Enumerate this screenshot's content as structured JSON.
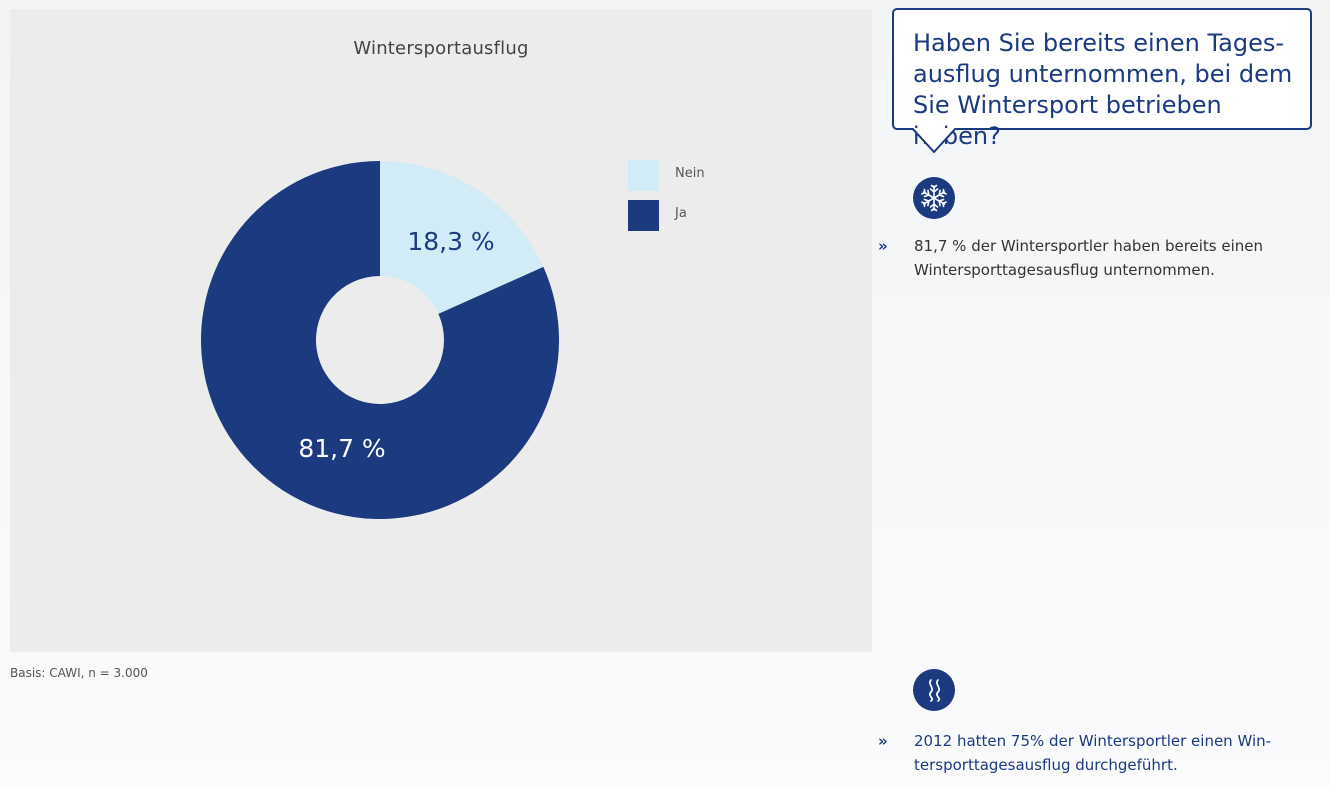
{
  "chart_data": {
    "type": "donut",
    "title": "Wintersportausflug",
    "slices": [
      {
        "label": "Nein",
        "value": 18.3,
        "display": "18,3 %",
        "color": "#d2ecf7",
        "text_color": "#1b3a80"
      },
      {
        "label": "Ja",
        "value": 81.7,
        "display": "81,7 %",
        "color": "#1b3a80",
        "text_color": "#ffffff"
      }
    ],
    "legend": {
      "position": "right",
      "entries": [
        {
          "label": "Nein",
          "color": "#d2ecf7"
        },
        {
          "label": "Ja",
          "color": "#1b3a80"
        }
      ]
    }
  },
  "basis": "Basis: CAWI, n = 3.000",
  "question": {
    "lines": [
      "Haben Sie bereits einen Tages-",
      "ausflug unternommen, bei dem",
      "Sie Wintersport betrieben haben?"
    ]
  },
  "facts": [
    {
      "icon": "snowflake-icon",
      "arrow": "»",
      "lines": [
        "81,7 % der Wintersportler haben bereits einen",
        "Wintersporttagesausflug unternommen."
      ]
    },
    {
      "icon": "waves-icon",
      "arrow": "»",
      "lines": [
        "2012 hatten 75% der Wintersportler einen Win-",
        "tersporttagesausflug durchgeführt."
      ]
    }
  ],
  "colors": {
    "brand": "#1b3a80",
    "light": "#d2ecf7",
    "panel": "#ececec"
  }
}
